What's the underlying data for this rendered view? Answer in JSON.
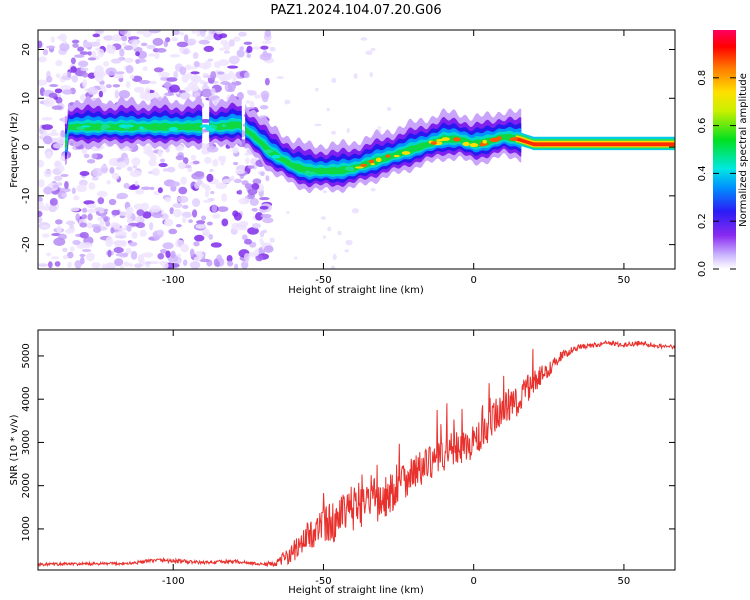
{
  "figure": {
    "title": "PAZ1.2024.104.07.20.G06"
  },
  "chart_data": [
    {
      "type": "heatmap",
      "xlabel": "Height of straight line (km)",
      "ylabel": "Frequency (Hz)",
      "xlim": [
        -145,
        67
      ],
      "ylim": [
        -25,
        24
      ],
      "xticks": [
        -100,
        -50,
        0,
        50
      ],
      "yticks": [
        -20,
        -10,
        0,
        10,
        20
      ],
      "colorbar": {
        "label": "Normalized spectral amplitude",
        "range": [
          0.0,
          1.0
        ],
        "ticks": [
          0.0,
          0.2,
          0.4,
          0.6,
          0.8
        ],
        "colormap": "gist_rainbow_r"
      },
      "ridge": {
        "x": [
          -135,
          -125,
          -115,
          -105,
          -95,
          -85,
          -78,
          -72,
          -68,
          -64,
          -60,
          -55,
          -50,
          -45,
          -40,
          -35,
          -30,
          -25,
          -20,
          -15,
          -10,
          -5,
          0,
          5,
          10,
          15,
          20,
          30,
          40,
          50,
          60,
          67
        ],
        "y": [
          4,
          4,
          4,
          4,
          4,
          4,
          4.5,
          1.5,
          -1,
          -2.5,
          -4,
          -5,
          -5,
          -5,
          -4.5,
          -3.5,
          -2.5,
          -1.5,
          -0.5,
          0.5,
          1.5,
          1.5,
          0.5,
          1,
          2,
          1.5,
          0.5,
          0.5,
          0.5,
          0.5,
          0.5,
          0.5
        ]
      }
    },
    {
      "type": "line",
      "xlabel": "Height of straight line (km)",
      "ylabel": "SNR (10 * v/v)",
      "xlim": [
        -145,
        67
      ],
      "ylim": [
        50,
        5600
      ],
      "xticks": [
        -100,
        -50,
        0,
        50
      ],
      "yticks": [
        1000,
        2000,
        3000,
        4000,
        5000
      ],
      "color": "#e8302c",
      "series": [
        {
          "x": [
            -145,
            -130,
            -115,
            -105,
            -100,
            -90,
            -80,
            -70,
            -65,
            -62,
            -58,
            -55,
            -50,
            -45,
            -40,
            -35,
            -30,
            -25,
            -20,
            -15,
            -10,
            -5,
            0,
            5,
            10,
            15,
            20,
            25,
            30,
            35,
            40,
            45,
            50,
            55,
            60,
            67
          ],
          "y": [
            180,
            190,
            200,
            280,
            260,
            220,
            250,
            180,
            220,
            400,
            600,
            850,
            1100,
            1200,
            1500,
            1700,
            1600,
            2100,
            2300,
            2500,
            2700,
            2850,
            3000,
            3300,
            3800,
            4000,
            4400,
            4700,
            5050,
            5200,
            5250,
            5300,
            5250,
            5300,
            5250,
            5200
          ],
          "amp": [
            60,
            60,
            60,
            80,
            100,
            60,
            80,
            60,
            150,
            400,
            500,
            600,
            800,
            900,
            1000,
            1100,
            1000,
            900,
            800,
            700,
            700,
            700,
            700,
            800,
            800,
            700,
            500,
            300,
            200,
            120,
            100,
            100,
            100,
            100,
            100,
            100
          ]
        }
      ]
    }
  ]
}
